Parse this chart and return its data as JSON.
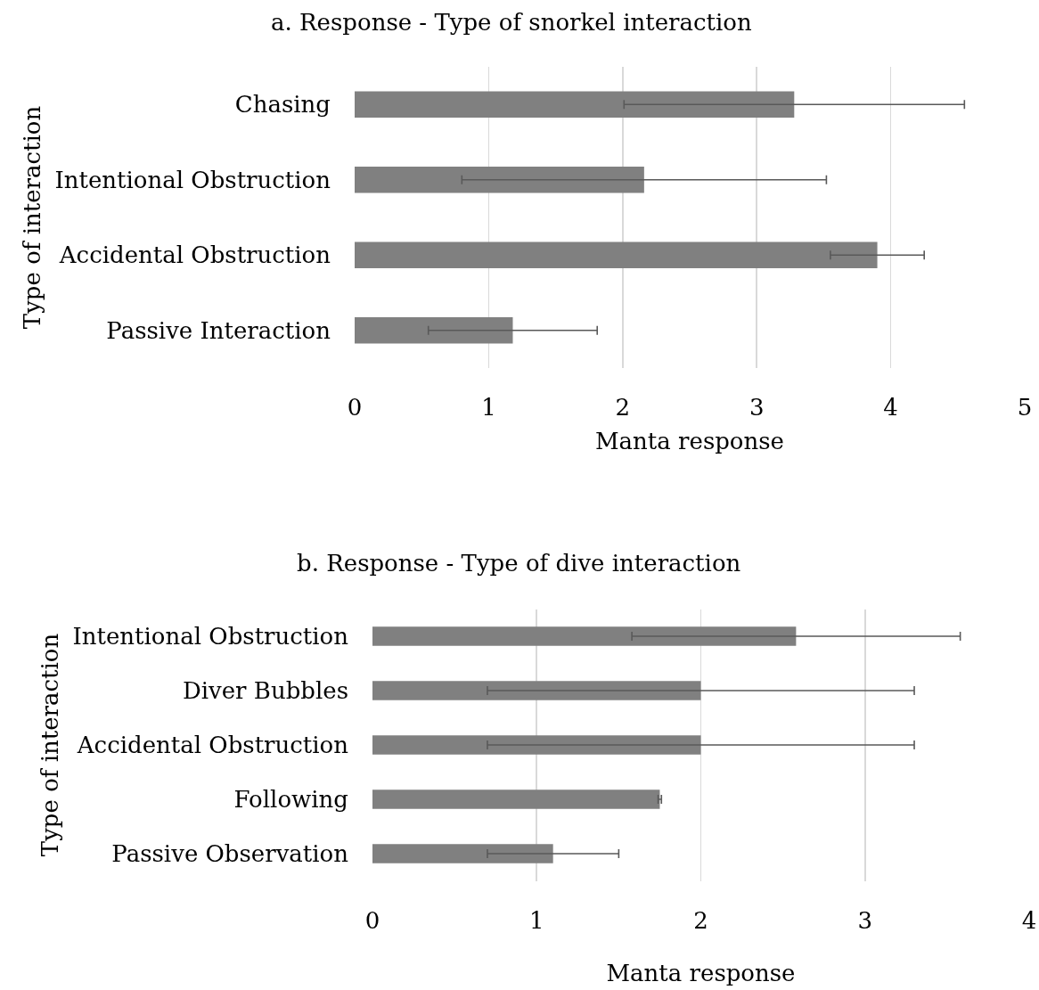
{
  "chart_data": [
    {
      "type": "bar",
      "orientation": "horizontal",
      "title": "a. Response - Type of snorkel interaction",
      "xlabel": "Manta response",
      "ylabel": "Type of interaction",
      "categories": [
        "Chasing",
        "Intentional Obstruction",
        "Accidental Obstruction",
        "Passive Interaction"
      ],
      "values": [
        3.28,
        2.16,
        3.9,
        1.18
      ],
      "errors": [
        1.27,
        1.36,
        0.35,
        0.63
      ],
      "color": "#808080",
      "xlim": [
        0,
        5
      ],
      "xticks": [
        0,
        1,
        2,
        3,
        4,
        5
      ],
      "grid": "x"
    },
    {
      "type": "bar",
      "orientation": "horizontal",
      "title": "b. Response - Type of dive interaction",
      "xlabel": "Manta response",
      "ylabel": "Type of interaction",
      "categories": [
        "Intentional Obstruction",
        "Diver Bubbles",
        "Accidental Obstruction",
        "Following",
        "Passive Observation"
      ],
      "values": [
        2.58,
        2.0,
        2.0,
        1.75,
        1.1
      ],
      "errors": [
        1.0,
        1.3,
        1.3,
        0.01,
        0.4
      ],
      "color": "#808080",
      "xlim": [
        0,
        4
      ],
      "xticks": [
        0,
        1,
        2,
        3,
        4
      ],
      "grid": "x"
    }
  ]
}
